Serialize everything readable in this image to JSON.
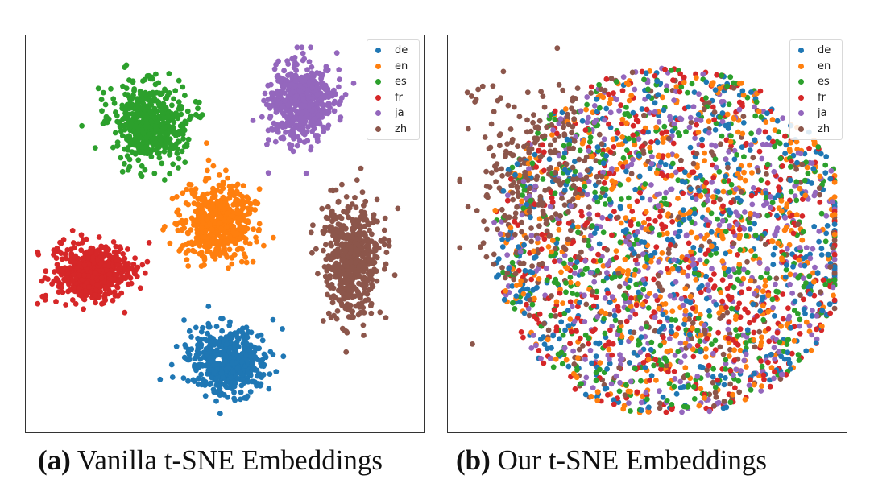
{
  "legend_colors": {
    "de": "#1f77b4",
    "en": "#ff7f0e",
    "es": "#2ca02c",
    "fr": "#d62728",
    "ja": "#9467bd",
    "zh": "#8c564b"
  },
  "captions": {
    "a_tag": "(a)",
    "a_text": " Vanilla t-SNE Embeddings",
    "b_tag": "(b)",
    "b_text": " Our t-SNE Embeddings"
  },
  "chart_data": [
    {
      "type": "scatter",
      "title": "",
      "xlabel": "",
      "ylabel": "",
      "axes_ticks": "none",
      "grid": false,
      "legend_placement": "top-right",
      "legend": [
        "de",
        "en",
        "es",
        "fr",
        "ja",
        "zh"
      ],
      "series": [
        {
          "name": "de",
          "color": "#1f77b4",
          "distribution": "single compact cluster",
          "center": [
            0.51,
            0.82
          ],
          "spread": [
            0.11,
            0.09
          ]
        },
        {
          "name": "en",
          "color": "#ff7f0e",
          "distribution": "single compact cluster",
          "center": [
            0.48,
            0.47
          ],
          "spread": [
            0.1,
            0.11
          ]
        },
        {
          "name": "es",
          "color": "#2ca02c",
          "distribution": "single compact cluster",
          "center": [
            0.31,
            0.22
          ],
          "spread": [
            0.1,
            0.11
          ]
        },
        {
          "name": "fr",
          "color": "#d62728",
          "distribution": "single compact cluster",
          "center": [
            0.17,
            0.6
          ],
          "spread": [
            0.11,
            0.08
          ]
        },
        {
          "name": "ja",
          "color": "#9467bd",
          "distribution": "single compact cluster",
          "center": [
            0.69,
            0.17
          ],
          "spread": [
            0.09,
            0.11
          ]
        },
        {
          "name": "zh",
          "color": "#8c564b",
          "distribution": "single compact cluster",
          "center": [
            0.82,
            0.56
          ],
          "spread": [
            0.08,
            0.16
          ]
        }
      ]
    },
    {
      "type": "scatter",
      "title": "",
      "xlabel": "",
      "ylabel": "",
      "axes_ticks": "none",
      "grid": false,
      "legend_placement": "top-right",
      "legend": [
        "de",
        "en",
        "es",
        "fr",
        "ja",
        "zh"
      ],
      "series": [
        {
          "name": "de",
          "color": "#1f77b4",
          "distribution": "mixed across one large blob",
          "center": [
            0.55,
            0.52
          ],
          "spread": [
            0.38,
            0.38
          ]
        },
        {
          "name": "en",
          "color": "#ff7f0e",
          "distribution": "mixed across one large blob",
          "center": [
            0.55,
            0.52
          ],
          "spread": [
            0.38,
            0.38
          ]
        },
        {
          "name": "es",
          "color": "#2ca02c",
          "distribution": "mixed across one large blob",
          "center": [
            0.55,
            0.52
          ],
          "spread": [
            0.38,
            0.38
          ]
        },
        {
          "name": "fr",
          "color": "#d62728",
          "distribution": "mixed across one large blob",
          "center": [
            0.55,
            0.52
          ],
          "spread": [
            0.38,
            0.38
          ]
        },
        {
          "name": "ja",
          "color": "#9467bd",
          "distribution": "mixed across one large blob",
          "center": [
            0.55,
            0.52
          ],
          "spread": [
            0.38,
            0.38
          ]
        },
        {
          "name": "zh",
          "color": "#8c564b",
          "distribution": "mixed, denser on the left",
          "center": [
            0.35,
            0.38
          ],
          "spread": [
            0.3,
            0.3
          ]
        }
      ]
    }
  ]
}
